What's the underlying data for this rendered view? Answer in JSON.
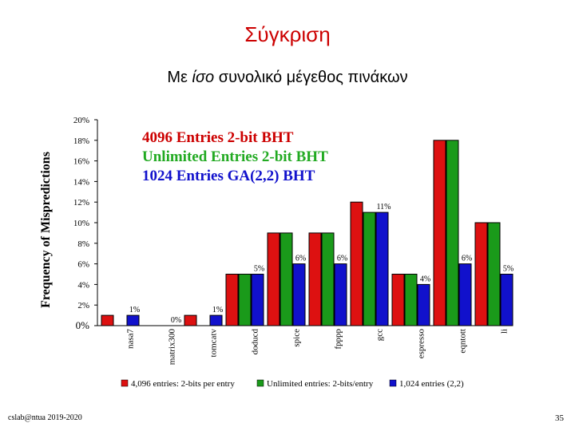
{
  "slide": {
    "title": "Σύγκριση",
    "subtitle_prefix": "Με ",
    "subtitle_em": "ίσο",
    "subtitle_suffix": " συνολικό μέγεθος πινάκων",
    "footer_left": "cslab@ntua 2019-2020",
    "page_number": "35"
  },
  "chart_data": {
    "type": "bar",
    "ylabel": "Frequency of Mispredictions",
    "ylim": [
      0,
      20
    ],
    "yticks": [
      "0%",
      "2%",
      "4%",
      "6%",
      "8%",
      "10%",
      "12%",
      "14%",
      "16%",
      "18%",
      "20%"
    ],
    "categories": [
      "nasa7",
      "matrix300",
      "tomcatv",
      "doducd",
      "spice",
      "fpppp",
      "gcc",
      "espresso",
      "eqntott",
      "li"
    ],
    "series": [
      {
        "name": "4,096 entries: 2-bits per entry",
        "color": "#dd1111",
        "values": [
          1,
          0,
          1,
          5,
          9,
          9,
          12,
          5,
          18,
          10
        ],
        "labels": [
          "",
          "",
          "",
          "",
          "",
          "",
          "",
          "",
          "",
          ""
        ]
      },
      {
        "name": "Unlimited entries: 2-bits/entry",
        "color": "#1a9a1a",
        "values": [
          0,
          0,
          0,
          5,
          9,
          9,
          11,
          5,
          18,
          10
        ],
        "labels": [
          "",
          "",
          "",
          "",
          "",
          "",
          "",
          "",
          "",
          ""
        ]
      },
      {
        "name": "1,024 entries (2,2)",
        "color": "#1111cc",
        "values": [
          1,
          0,
          1,
          5,
          6,
          6,
          11,
          4,
          6,
          5
        ],
        "labels": [
          "1%",
          "0%",
          "1%",
          "5%",
          "6%",
          "6%",
          "11%",
          "4%",
          "6%",
          "5%"
        ]
      }
    ],
    "annotations": [
      "4096 Entries 2-bit BHT",
      "Unlimited Entries 2-bit BHT",
      "1024 Entries GA(2,2) BHT"
    ],
    "annotation_colors": [
      "#cc0000",
      "#22aa22",
      "#1111cc"
    ],
    "legend_position": "bottom",
    "grid": false
  }
}
